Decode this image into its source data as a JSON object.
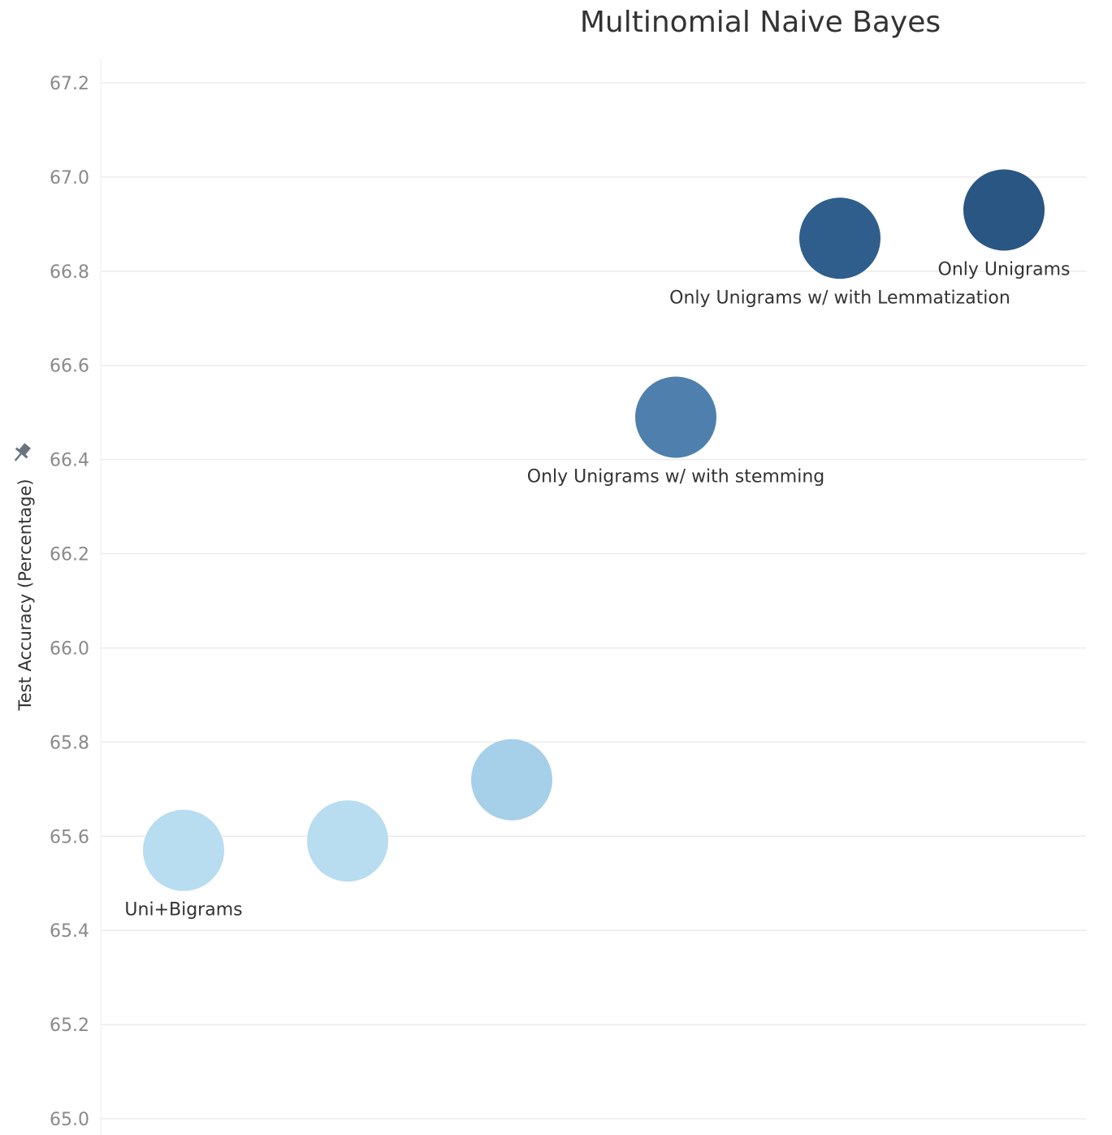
{
  "chart_data": {
    "type": "scatter",
    "title": "Multinomial Naive Bayes",
    "xlabel": "",
    "ylabel": "Test Accuracy (Percentage)",
    "ylim": [
      65.0,
      67.2
    ],
    "yticks": [
      "65.0",
      "65.2",
      "65.4",
      "65.6",
      "65.8",
      "66.0",
      "66.2",
      "66.4",
      "66.6",
      "66.8",
      "67.0",
      "67.2"
    ],
    "grid": "horizontal",
    "points": [
      {
        "order": 1,
        "y": 65.57,
        "label": "Uni+Bigrams",
        "color": "#b8dcf0"
      },
      {
        "order": 2,
        "y": 65.59,
        "label": "",
        "color": "#b8dcf0"
      },
      {
        "order": 3,
        "y": 65.72,
        "label": "",
        "color": "#a6cfe9"
      },
      {
        "order": 4,
        "y": 66.49,
        "label": "Only Unigrams w/ with stemming",
        "color": "#4f7fad"
      },
      {
        "order": 5,
        "y": 66.87,
        "label": "Only Unigrams w/ with Lemmatization",
        "color": "#2f5e8c"
      },
      {
        "order": 6,
        "y": 66.93,
        "label": "Only Unigrams",
        "color": "#2a5683"
      }
    ],
    "pin_icon": "pin-icon"
  }
}
